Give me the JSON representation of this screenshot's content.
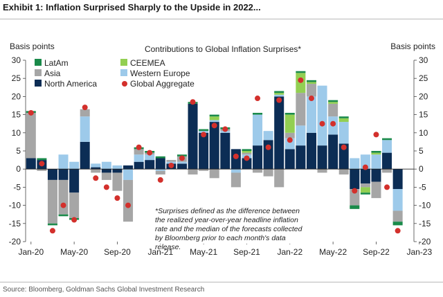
{
  "exhibit": {
    "title": "Exhibit 1: Inflation Surprised Sharply to the Upside in 2022...",
    "source": "Source: Bloomberg, Goldman Sachs Global Investment Research"
  },
  "chart_data": {
    "type": "bar",
    "title": "Contributions to Global Inflation Surprises*",
    "ylabel_left": "Basis points",
    "ylabel_right": "Basis points",
    "ylim": [
      -20,
      30
    ],
    "yticks": [
      30,
      25,
      20,
      15,
      10,
      5,
      0,
      -5,
      -10,
      -15,
      -20
    ],
    "xtick_labels": [
      "Jan-20",
      "May-20",
      "Sep-20",
      "Jan-21",
      "May-21",
      "Sep-21",
      "Jan-22",
      "May-22",
      "Sep-22",
      "Jan-23"
    ],
    "stacked": true,
    "grid": false,
    "legend_position": "top-left",
    "footnote": "*Surprises defined as the difference between the realized year-over-year headline inflation rate and the median of the forecasts collected by Bloomberg prior to each month's data release.",
    "colors": {
      "LatAm": "#1a8a4a",
      "CEEMEA": "#92cf52",
      "Asia": "#a6a6a6",
      "Western Europe": "#9dcaea",
      "North America": "#0c2d55",
      "Global Aggregate": "#d3302c"
    },
    "legend": [
      {
        "name": "LatAm",
        "kind": "bar"
      },
      {
        "name": "CEEMEA",
        "kind": "bar"
      },
      {
        "name": "Asia",
        "kind": "bar"
      },
      {
        "name": "Western Europe",
        "kind": "bar"
      },
      {
        "name": "North America",
        "kind": "bar"
      },
      {
        "name": "Global Aggregate",
        "kind": "marker"
      }
    ],
    "x": [
      "Jan-20",
      "Feb-20",
      "Mar-20",
      "Apr-20",
      "May-20",
      "Jun-20",
      "Jul-20",
      "Aug-20",
      "Sep-20",
      "Oct-20",
      "Nov-20",
      "Dec-20",
      "Jan-21",
      "Feb-21",
      "Mar-21",
      "Apr-21",
      "May-21",
      "Jun-21",
      "Jul-21",
      "Aug-21",
      "Sep-21",
      "Oct-21",
      "Nov-21",
      "Dec-21",
      "Jan-22",
      "Feb-22",
      "Mar-22",
      "Apr-22",
      "May-22",
      "Jun-22",
      "Jul-22",
      "Aug-22",
      "Sep-22",
      "Oct-22",
      "Nov-22"
    ],
    "series": [
      {
        "name": "North America",
        "values": [
          3.0,
          2.5,
          -3.0,
          -3.0,
          -6.5,
          7.5,
          0.5,
          -1.0,
          -1.0,
          1.0,
          2.0,
          2.5,
          3.0,
          1.5,
          1.5,
          18.0,
          10.0,
          13.0,
          10.0,
          5.5,
          3.0,
          6.5,
          8.0,
          20.0,
          5.5,
          6.5,
          10.0,
          6.5,
          9.5,
          7.0,
          -5.5,
          -4.0,
          -3.5,
          4.5,
          -5.5
        ]
      },
      {
        "name": "Western Europe",
        "values": [
          0.0,
          0.0,
          0.0,
          4.0,
          2.0,
          7.0,
          1.0,
          2.0,
          1.0,
          -3.0,
          2.0,
          1.5,
          -0.5,
          0.5,
          0.5,
          0.0,
          0.5,
          0.5,
          0.5,
          -1.0,
          1.0,
          8.5,
          2.5,
          0.5,
          3.0,
          5.5,
          10.0,
          16.5,
          5.0,
          6.0,
          3.0,
          4.0,
          4.0,
          3.5,
          -6.0
        ]
      },
      {
        "name": "Asia",
        "values": [
          12.5,
          -0.5,
          -12.0,
          -9.5,
          -7.0,
          2.0,
          -1.0,
          -2.0,
          -5.0,
          -11.5,
          1.5,
          0.5,
          -1.0,
          0.5,
          1.5,
          -1.5,
          -0.5,
          -2.5,
          0.5,
          -4.0,
          0.5,
          -1.0,
          -2.0,
          -5.0,
          1.5,
          9.0,
          3.5,
          -1.0,
          3.5,
          -1.5,
          -4.5,
          -1.0,
          -4.5,
          -1.0,
          -3.0
        ]
      },
      {
        "name": "CEEMEA",
        "values": [
          0.0,
          0.0,
          0.0,
          0.0,
          0.0,
          0.0,
          0.0,
          0.0,
          0.0,
          0.0,
          0.0,
          0.0,
          0.0,
          0.0,
          0.0,
          0.0,
          0.0,
          1.0,
          0.0,
          0.0,
          0.5,
          0.0,
          0.0,
          0.5,
          5.0,
          5.5,
          0.5,
          0.0,
          0.5,
          1.0,
          0.0,
          -1.5,
          0.5,
          0.0,
          0.0
        ]
      },
      {
        "name": "LatAm",
        "values": [
          0.5,
          0.5,
          -0.5,
          -0.5,
          -0.5,
          0.0,
          0.0,
          0.0,
          0.0,
          0.0,
          0.5,
          0.5,
          0.5,
          0.0,
          0.5,
          0.5,
          0.5,
          0.5,
          0.5,
          0.0,
          0.5,
          0.5,
          0.0,
          0.5,
          0.5,
          0.5,
          0.5,
          0.0,
          0.5,
          0.5,
          -1.0,
          -0.5,
          0.5,
          0.5,
          -1.0
        ]
      }
    ],
    "global_aggregate": [
      15.5,
      1.5,
      -17.0,
      -10.0,
      -14.0,
      17.0,
      -2.5,
      -5.0,
      -8.0,
      -10.0,
      6.0,
      4.5,
      -3.0,
      1.0,
      3.0,
      18.5,
      9.5,
      12.0,
      11.0,
      3.5,
      3.0,
      19.5,
      6.0,
      19.0,
      8.0,
      24.5,
      19.5,
      12.5,
      12.5,
      6.0,
      -6.0,
      0.5,
      9.5,
      -5.0,
      -17.0
    ]
  }
}
